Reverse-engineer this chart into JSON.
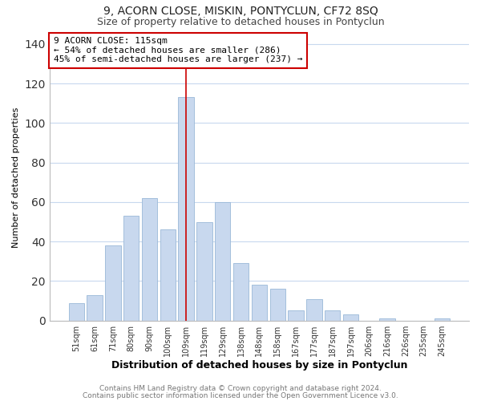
{
  "title": "9, ACORN CLOSE, MISKIN, PONTYCLUN, CF72 8SQ",
  "subtitle": "Size of property relative to detached houses in Pontyclun",
  "xlabel": "Distribution of detached houses by size in Pontyclun",
  "ylabel": "Number of detached properties",
  "bar_color": "#c8d8ee",
  "bar_edge_color": "#9ab8d8",
  "categories": [
    "51sqm",
    "61sqm",
    "71sqm",
    "80sqm",
    "90sqm",
    "100sqm",
    "109sqm",
    "119sqm",
    "129sqm",
    "138sqm",
    "148sqm",
    "158sqm",
    "167sqm",
    "177sqm",
    "187sqm",
    "197sqm",
    "206sqm",
    "216sqm",
    "226sqm",
    "235sqm",
    "245sqm"
  ],
  "values": [
    9,
    13,
    38,
    53,
    62,
    46,
    113,
    50,
    60,
    29,
    18,
    16,
    5,
    11,
    5,
    3,
    0,
    1,
    0,
    0,
    1
  ],
  "ylim": [
    0,
    145
  ],
  "yticks": [
    0,
    20,
    40,
    60,
    80,
    100,
    120,
    140
  ],
  "annotation_title": "9 ACORN CLOSE: 115sqm",
  "annotation_line1": "← 54% of detached houses are smaller (286)",
  "annotation_line2": "45% of semi-detached houses are larger (237) →",
  "annotation_box_color": "#ffffff",
  "annotation_box_edge": "#cc0000",
  "footer1": "Contains HM Land Registry data © Crown copyright and database right 2024.",
  "footer2": "Contains public sector information licensed under the Open Government Licence v3.0.",
  "highlight_bar_index": 6,
  "vline_color": "#cc0000",
  "background_color": "#ffffff",
  "grid_color": "#c8d8ee",
  "title_fontsize": 10,
  "subtitle_fontsize": 9,
  "ylabel_fontsize": 8,
  "xlabel_fontsize": 9,
  "tick_fontsize": 7,
  "annotation_fontsize": 8,
  "footer_fontsize": 6.5
}
